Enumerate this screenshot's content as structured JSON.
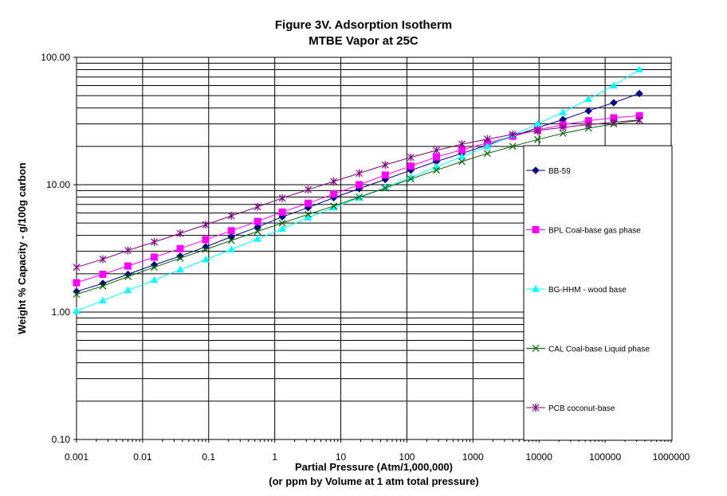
{
  "chart_data": {
    "type": "line",
    "title": "Figure 3V. Adsorption Isotherm",
    "subtitle": "MTBE Vapor at 25C",
    "xlabel": "Partial Pressure (Atm/1,000,000)",
    "xlabel2": "(or ppm by Volume at 1 atm total pressure)",
    "ylabel": "Weight % Capacity - g/100g carbon",
    "x_scale": "log",
    "y_scale": "log",
    "xlim": [
      0.001,
      1000000
    ],
    "ylim": [
      0.1,
      100
    ],
    "x_ticks": [
      "0.001",
      "0.01",
      "0.1",
      "1",
      "10",
      "100",
      "1000",
      "10000",
      "100000",
      "1000000"
    ],
    "y_ticks": [
      "0.10",
      "1.00",
      "10.00",
      "100.00"
    ],
    "grid": true,
    "legend_position": "right",
    "x": [
      0.001,
      0.0025,
      0.006,
      0.015,
      0.037,
      0.09,
      0.22,
      0.55,
      1.3,
      3.2,
      7.8,
      19,
      47,
      115,
      280,
      680,
      1650,
      4000,
      9500,
      23000,
      56000,
      135000,
      330000
    ],
    "series": [
      {
        "name": "BB-59",
        "color": "#000080",
        "marker": "diamond",
        "values": [
          1.45,
          1.68,
          1.98,
          2.35,
          2.75,
          3.25,
          3.9,
          4.65,
          5.6,
          6.6,
          7.9,
          9.3,
          11.0,
          13.0,
          15.2,
          17.6,
          20.5,
          24.0,
          28.0,
          32.5,
          38.0,
          44.0,
          52.0
        ]
      },
      {
        "name": "BPL Coal-base gas phase",
        "color": "#FF00FF",
        "marker": "square",
        "values": [
          1.7,
          1.98,
          2.3,
          2.7,
          3.15,
          3.7,
          4.35,
          5.15,
          6.1,
          7.15,
          8.45,
          10.0,
          11.9,
          14.0,
          16.5,
          18.8,
          21.3,
          24.0,
          27.0,
          29.5,
          31.8,
          33.5,
          34.8
        ]
      },
      {
        "name": "BG-HHM  - wood base",
        "color": "#00FFFF",
        "marker": "triangle",
        "values": [
          1.02,
          1.23,
          1.48,
          1.78,
          2.15,
          2.58,
          3.1,
          3.75,
          4.5,
          5.5,
          6.6,
          7.9,
          9.5,
          11.4,
          13.8,
          16.6,
          20.0,
          24.5,
          30.0,
          37.0,
          47.0,
          60.0,
          80.0
        ]
      },
      {
        "name": "CAL Coal-base Liquid phase",
        "color": "#006400",
        "marker": "x",
        "values": [
          1.38,
          1.6,
          1.9,
          2.25,
          2.65,
          3.1,
          3.65,
          4.3,
          5.0,
          5.85,
          6.8,
          8.0,
          9.4,
          11.1,
          13.0,
          15.2,
          17.6,
          20.0,
          22.6,
          25.3,
          27.8,
          30.0,
          32.0
        ]
      },
      {
        "name": "PCB coconut-base",
        "color": "#800080",
        "marker": "star",
        "values": [
          2.25,
          2.6,
          3.05,
          3.55,
          4.15,
          4.85,
          5.7,
          6.7,
          7.85,
          9.15,
          10.6,
          12.3,
          14.3,
          16.4,
          18.6,
          20.8,
          22.8,
          24.8,
          26.6,
          28.2,
          29.6,
          31.0,
          32.2
        ]
      }
    ]
  }
}
